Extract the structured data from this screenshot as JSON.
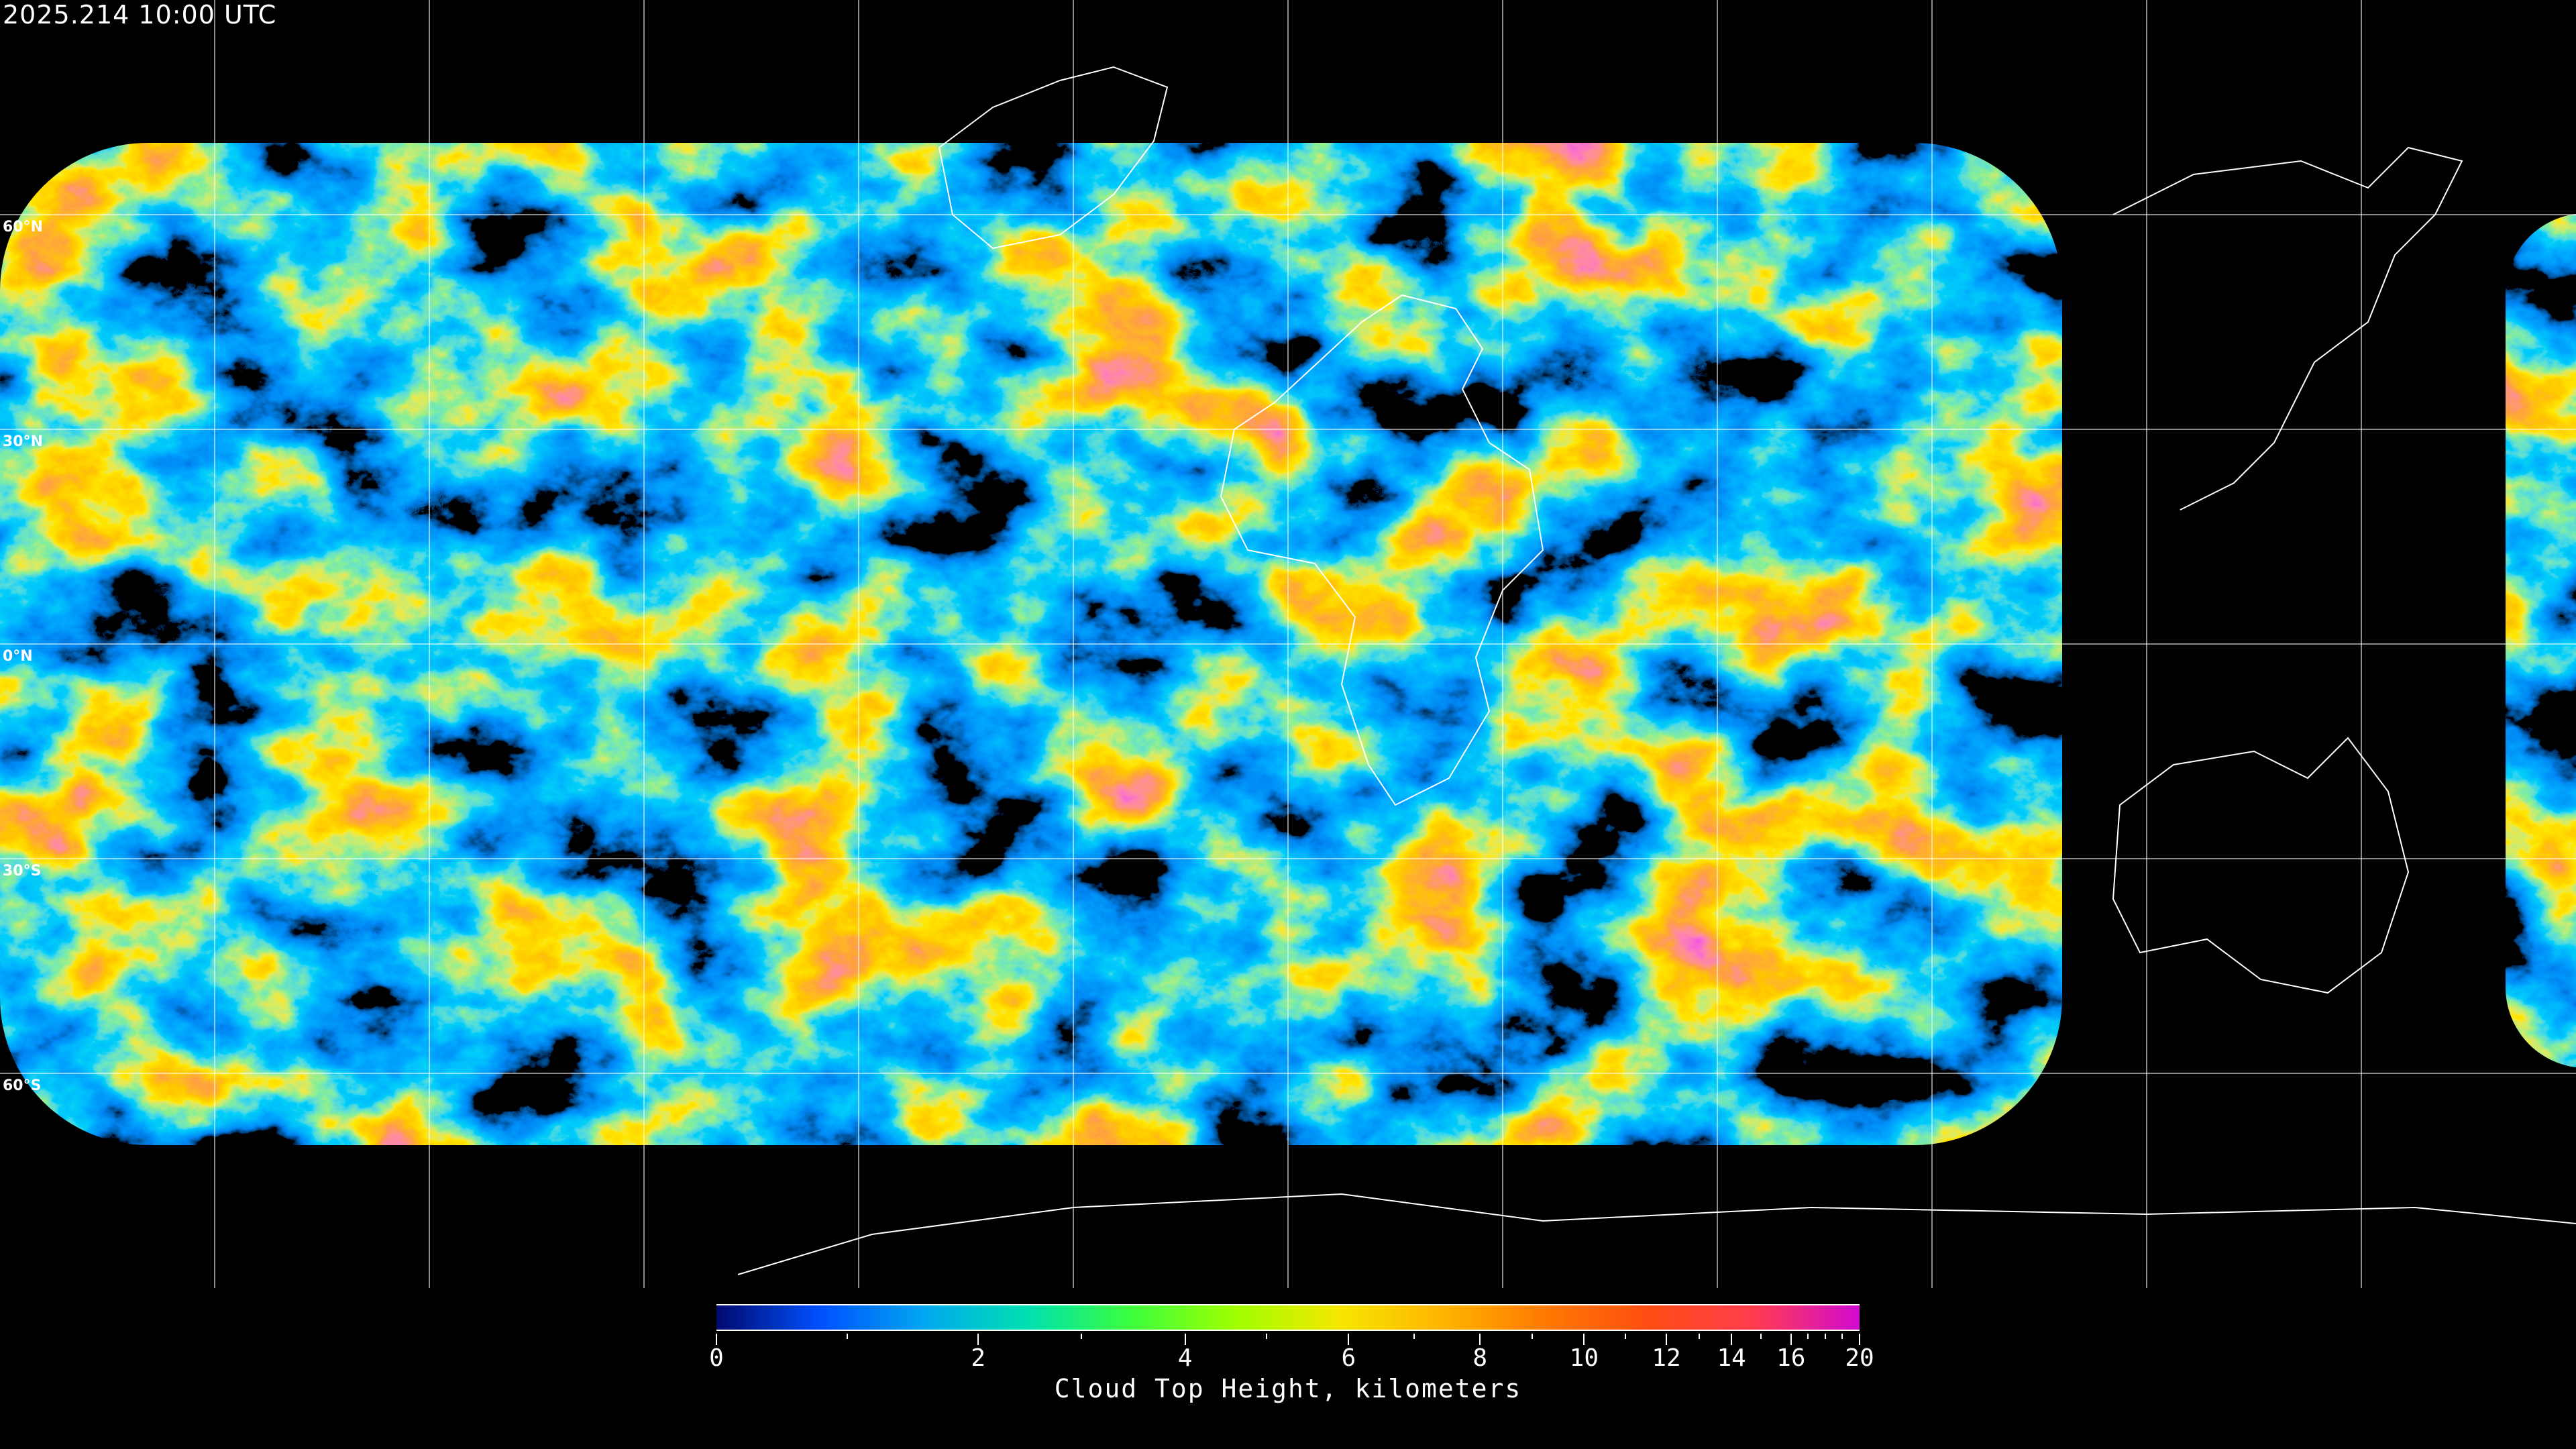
{
  "timestamp": "2025.214 10:00 UTC",
  "lat_labels": [
    "60°N",
    "30°N",
    "0°N",
    "30°S",
    "60°S"
  ],
  "colorbar": {
    "label": "Cloud Top Height, kilometers",
    "range": [
      0,
      20
    ],
    "major_ticks": [
      {
        "value": 0,
        "label": "0",
        "pos": 0
      },
      {
        "value": 2,
        "label": "2",
        "pos": 0.229
      },
      {
        "value": 4,
        "label": "4",
        "pos": 0.41
      },
      {
        "value": 6,
        "label": "6",
        "pos": 0.553
      },
      {
        "value": 8,
        "label": "8",
        "pos": 0.668
      },
      {
        "value": 10,
        "label": "10",
        "pos": 0.759
      },
      {
        "value": 12,
        "label": "12",
        "pos": 0.831
      },
      {
        "value": 14,
        "label": "14",
        "pos": 0.888
      },
      {
        "value": 16,
        "label": "16",
        "pos": 0.94
      },
      {
        "value": 20,
        "label": "20",
        "pos": 1
      }
    ],
    "minor_ticks": [
      1,
      3,
      5,
      7,
      9,
      11,
      13,
      15,
      17,
      18,
      19
    ],
    "colors": [
      "#000a6e",
      "#0050ff",
      "#00a8f0",
      "#00e0b0",
      "#3cff3c",
      "#a0ff00",
      "#f5e600",
      "#ffb400",
      "#ff7800",
      "#ff4c14",
      "#ff3c50",
      "#d20ad2"
    ]
  }
}
